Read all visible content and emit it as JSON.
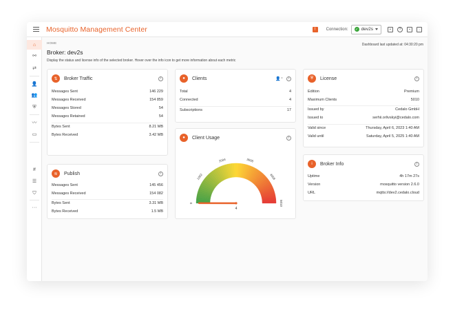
{
  "app": {
    "title": "Mosquitto Management Center"
  },
  "topbar": {
    "notification_glyph": "!",
    "connection_label": "Connection:",
    "connection_value": "dev2s",
    "icons": [
      "notification-icon",
      "connection-ok-icon",
      "chevron-down-icon",
      "plugin-icon",
      "help-icon",
      "profile-icon",
      "logout-icon"
    ]
  },
  "sidebar": {
    "items": [
      {
        "name": "home",
        "glyph": "⌂",
        "active": true
      },
      {
        "name": "connections",
        "glyph": "⚯"
      },
      {
        "name": "client-connections",
        "glyph": "⇄"
      },
      {
        "name": "client",
        "glyph": "👤"
      },
      {
        "name": "groups",
        "glyph": "👥"
      },
      {
        "name": "roles",
        "glyph": "⛨"
      },
      {
        "name": "streams",
        "glyph": "〰"
      },
      {
        "name": "inspect",
        "glyph": "▭"
      },
      {
        "name": "topics",
        "glyph": "#"
      },
      {
        "name": "list",
        "glyph": "☰"
      },
      {
        "name": "security",
        "glyph": "⛉"
      },
      {
        "name": "more",
        "glyph": "···"
      }
    ]
  },
  "page": {
    "breadcrumb": "HOME",
    "updated": "Dashboard last updated at: 04:30:20 pm",
    "title": "Broker: dev2s",
    "description": "Display the status and license info of the selected broker. Hover over the info icon to get more information about each metric"
  },
  "broker_traffic": {
    "title": "Broker Traffic",
    "rows": [
      {
        "label": "Messages Sent",
        "value": "146 229"
      },
      {
        "label": "Messages Received",
        "value": "154 859"
      },
      {
        "label": "Messages Stored",
        "value": "54"
      },
      {
        "label": "Messages Retained",
        "value": "54"
      },
      {
        "label": "Bytes Sent",
        "value": "8.21 MB"
      },
      {
        "label": "Bytes Received",
        "value": "3.42 MB"
      }
    ]
  },
  "publish": {
    "title": "Publish",
    "rows": [
      {
        "label": "Messages Sent",
        "value": "145 456"
      },
      {
        "label": "Messages Received",
        "value": "154 082"
      },
      {
        "label": "Bytes Sent",
        "value": "3.31 MB"
      },
      {
        "label": "Bytes Received",
        "value": "1.5 MB"
      }
    ]
  },
  "clients": {
    "title": "Clients",
    "rows": [
      {
        "label": "Total",
        "value": "4"
      },
      {
        "label": "Connected",
        "value": "4"
      },
      {
        "label": "Subscriptions",
        "value": "17"
      }
    ]
  },
  "client_usage": {
    "title": "Client Usage",
    "gauge": {
      "min": 0,
      "max": 5010,
      "value": 4,
      "ticks": [
        "0",
        "1002",
        "2004",
        "3006",
        "4008",
        "5010"
      ],
      "value_label": "4",
      "colors": {
        "low": "#e53935",
        "mid": "#fdd835",
        "high": "#43a047"
      }
    }
  },
  "license": {
    "title": "License",
    "rows": [
      {
        "label": "Edition",
        "value": "Premium"
      },
      {
        "label": "Maximum Clients",
        "value": "5010"
      },
      {
        "label": "Issued by",
        "value": "Cedalo GmbH"
      },
      {
        "label": "Issued to",
        "value": "serhii.orlivskyi@cedalo.com"
      },
      {
        "label": "Valid since",
        "value": "Thursday, April 6, 2023 1:40 AM"
      },
      {
        "label": "Valid until",
        "value": "Saturday, April 5, 2025 1:40 AM"
      }
    ]
  },
  "broker_info": {
    "title": "Broker Info",
    "rows": [
      {
        "label": "Uptime",
        "value": "4h 17m 27s"
      },
      {
        "label": "Version",
        "value": "mosquitto version 2.6.0"
      },
      {
        "label": "URL",
        "value": "mqtts://dev2.cedalo.cloud"
      }
    ]
  },
  "colors": {
    "accent": "#e8622a",
    "ok": "#3aa53a"
  }
}
